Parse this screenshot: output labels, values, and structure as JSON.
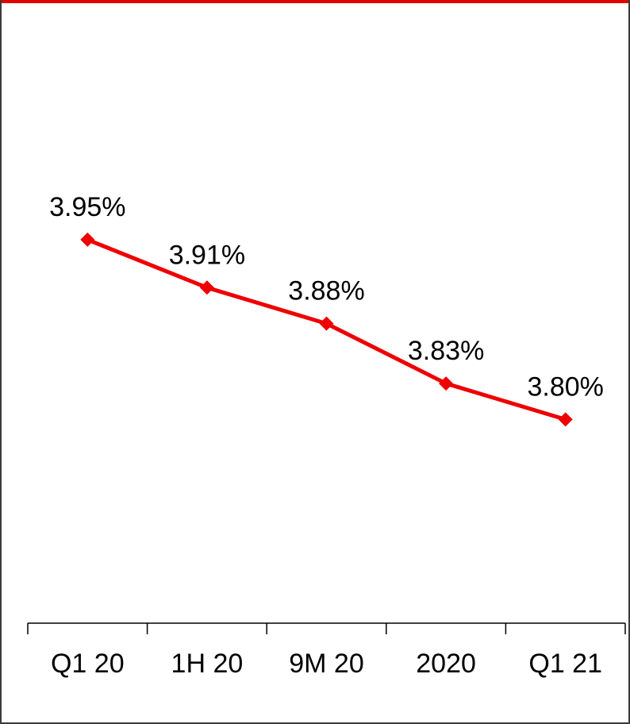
{
  "chart_data": {
    "type": "line",
    "categories": [
      "Q1 20",
      "1H 20",
      "9M 20",
      "2020",
      "Q1 21"
    ],
    "series": [
      {
        "values": [
          3.95,
          3.91,
          3.88,
          3.83,
          3.8
        ],
        "labels": [
          "3.95%",
          "3.91%",
          "3.88%",
          "3.83%",
          "3.80%"
        ],
        "color": "#ee0000"
      }
    ],
    "ylim": [
      3.63,
      4.15
    ],
    "grid": false,
    "legend": "none"
  },
  "colors": {
    "accent": "#e00000",
    "frame": "#3a3a3a"
  }
}
